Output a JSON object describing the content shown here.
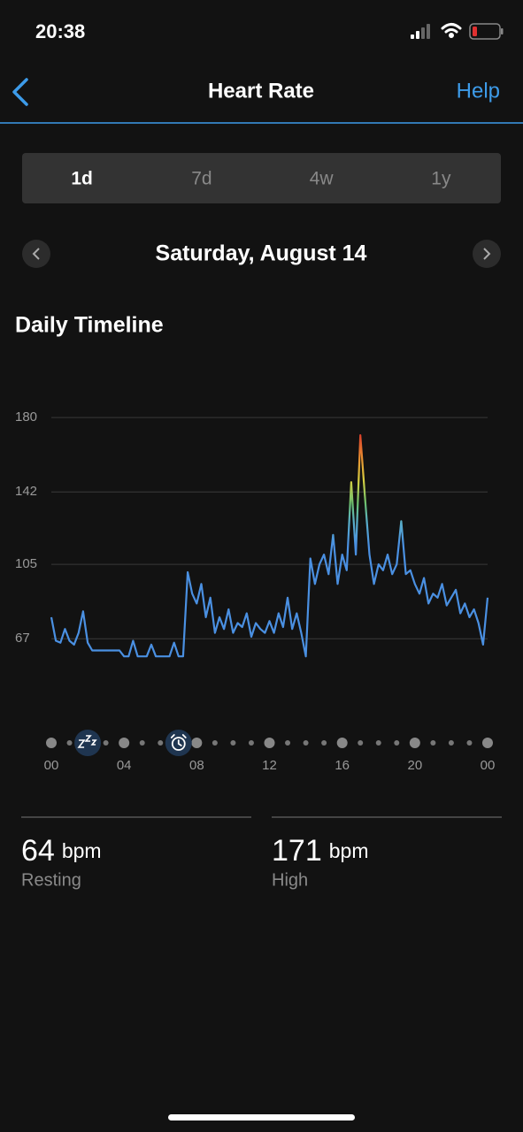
{
  "status_bar": {
    "time": "20:38"
  },
  "nav": {
    "title": "Heart Rate",
    "action": "Help"
  },
  "tabs": [
    "1d",
    "7d",
    "4w",
    "1y"
  ],
  "selected_tab": 0,
  "date": "Saturday, August 14",
  "section_title": "Daily Timeline",
  "chart_data": {
    "type": "line",
    "color": "#4a90e2",
    "x": [
      0,
      0.25,
      0.5,
      0.75,
      1,
      1.25,
      1.5,
      1.75,
      2,
      2.25,
      2.5,
      2.75,
      3,
      3.25,
      3.5,
      3.75,
      4,
      4.25,
      4.5,
      4.75,
      5,
      5.25,
      5.5,
      5.75,
      6,
      6.25,
      6.5,
      6.75,
      7,
      7.25,
      7.5,
      7.75,
      8,
      8.25,
      8.5,
      8.75,
      9,
      9.25,
      9.5,
      9.75,
      10,
      10.25,
      10.5,
      10.75,
      11,
      11.25,
      11.5,
      11.75,
      12,
      12.25,
      12.5,
      12.75,
      13,
      13.25,
      13.5,
      13.75,
      14,
      14.25,
      14.5,
      14.75,
      15,
      15.25,
      15.5,
      15.75,
      16,
      16.25,
      16.5,
      16.75,
      17,
      17.25,
      17.5,
      17.75,
      18,
      18.25,
      18.5,
      18.75,
      19,
      19.25,
      19.5,
      19.75,
      20,
      20.25,
      20.5,
      20.75,
      21,
      21.25,
      21.5,
      21.75,
      22,
      22.25,
      22.5,
      22.75,
      23,
      23.25,
      23.5,
      23.75,
      24
    ],
    "values": [
      78,
      66,
      65,
      72,
      66,
      64,
      70,
      81,
      65,
      61,
      61,
      61,
      61,
      61,
      61,
      61,
      58,
      58,
      66,
      58,
      58,
      58,
      64,
      58,
      58,
      58,
      58,
      65,
      58,
      58,
      101,
      90,
      85,
      95,
      78,
      88,
      70,
      78,
      72,
      82,
      70,
      75,
      73,
      80,
      68,
      75,
      72,
      70,
      76,
      70,
      80,
      73,
      88,
      72,
      80,
      70,
      58,
      108,
      95,
      105,
      110,
      100,
      120,
      95,
      110,
      102,
      147,
      110,
      171,
      140,
      110,
      95,
      105,
      102,
      110,
      100,
      105,
      127,
      100,
      102,
      95,
      90,
      98,
      85,
      90,
      88,
      95,
      84,
      88,
      92,
      80,
      85,
      78,
      82,
      75,
      64,
      88
    ],
    "xlim": [
      0,
      24
    ],
    "xticks": [
      {
        "value": 0,
        "label": "00"
      },
      {
        "value": 4,
        "label": "04"
      },
      {
        "value": 8,
        "label": "08"
      },
      12,
      16,
      20,
      {
        "value": 24,
        "label": "00"
      }
    ],
    "ylim": [
      40,
      190
    ],
    "yticks": [
      67,
      105,
      142,
      180
    ],
    "grid": true
  },
  "stats": [
    {
      "value": 64,
      "unit": "bpm",
      "label": "Resting"
    },
    {
      "value": 171,
      "unit": "bpm",
      "label": "High"
    }
  ]
}
